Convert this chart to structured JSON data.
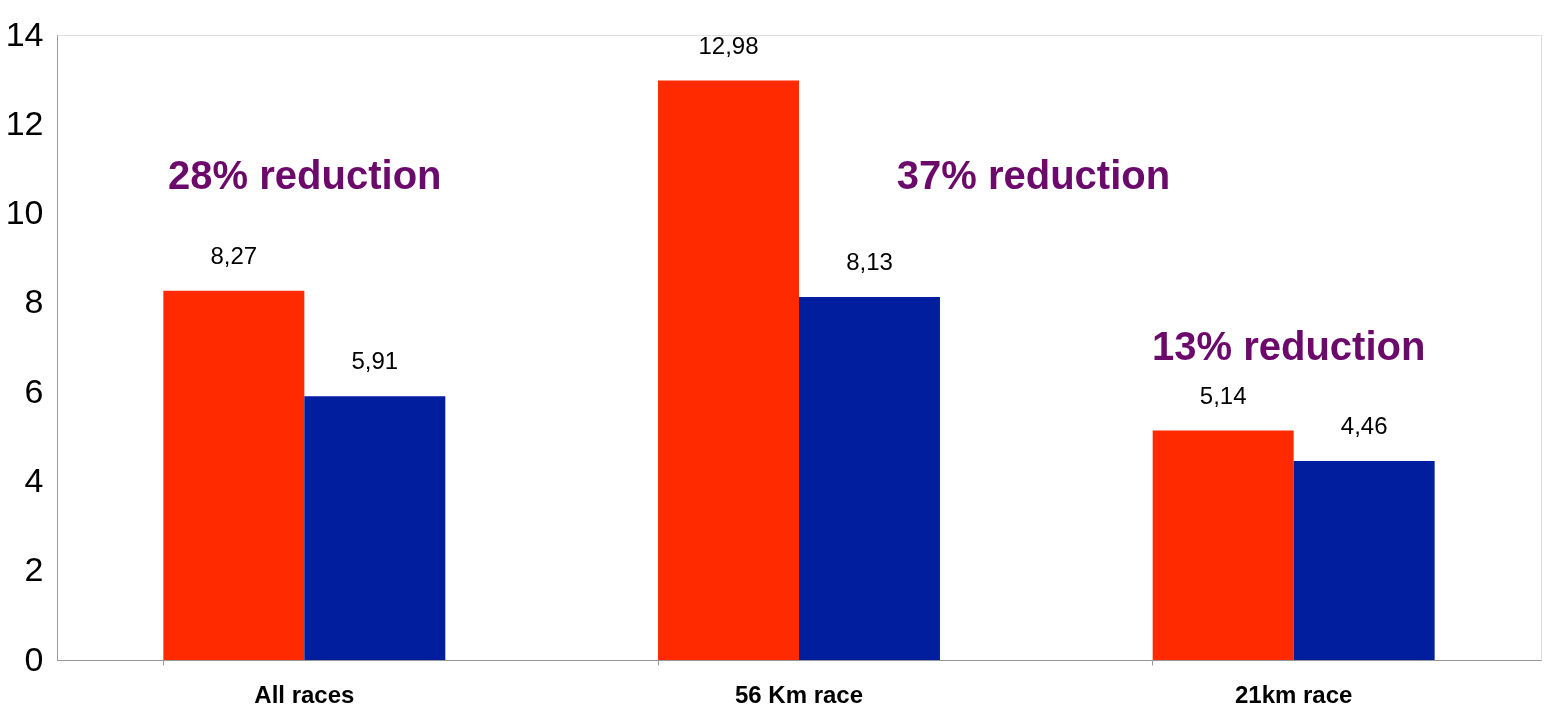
{
  "chart_data": {
    "type": "bar",
    "categories": [
      "All races",
      "56 Km race",
      "21km race"
    ],
    "series": [
      {
        "color": "#ff2a00",
        "values": [
          8.27,
          12.98,
          5.14
        ],
        "value_labels": [
          "8,27",
          "12,98",
          "5,14"
        ]
      },
      {
        "color": "#001e9e",
        "values": [
          5.91,
          8.13,
          4.46
        ],
        "value_labels": [
          "5,91",
          "8,13",
          "4,46"
        ]
      }
    ],
    "ylim": [
      0,
      14
    ],
    "yticks": [
      0,
      2,
      4,
      6,
      8,
      10,
      12,
      14
    ],
    "grid": false,
    "legend": false,
    "annotations": [
      "28% reduction",
      "37% reduction",
      "13% reduction"
    ]
  }
}
